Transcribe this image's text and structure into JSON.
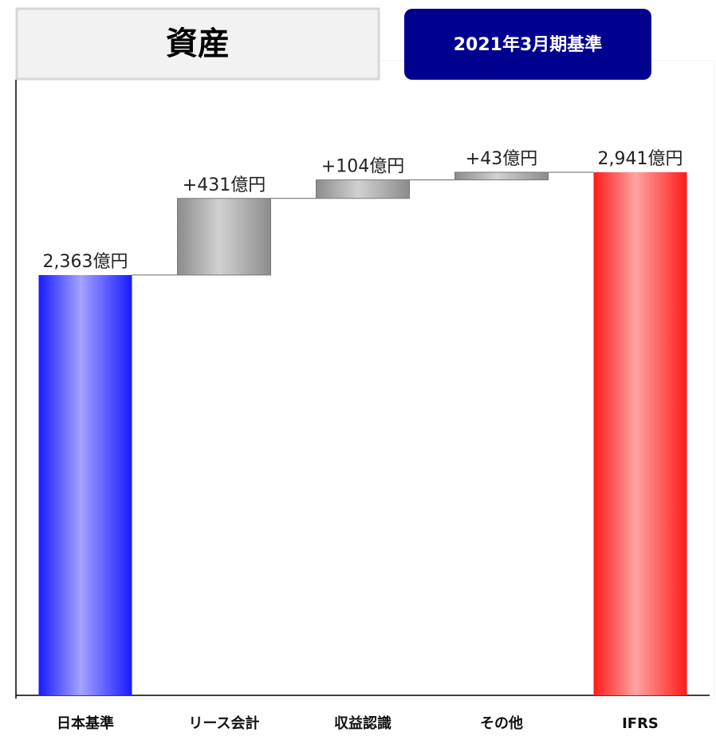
{
  "chart_data": {
    "type": "waterfall",
    "title": "資産",
    "subtitle": "2021年3月期基準",
    "categories": [
      "日本基準",
      "リース会計",
      "収益認識",
      "その他",
      "IFRS"
    ],
    "values": [
      2363,
      431,
      104,
      43,
      2941
    ],
    "value_labels": [
      "2,363億円",
      "+431億円",
      "+104億円",
      "+43億円",
      "2,941億円"
    ],
    "colors": [
      "#1a1aff",
      "#8c8c8c",
      "#8c8c8c",
      "#8c8c8c",
      "#ff1a1a"
    ]
  }
}
